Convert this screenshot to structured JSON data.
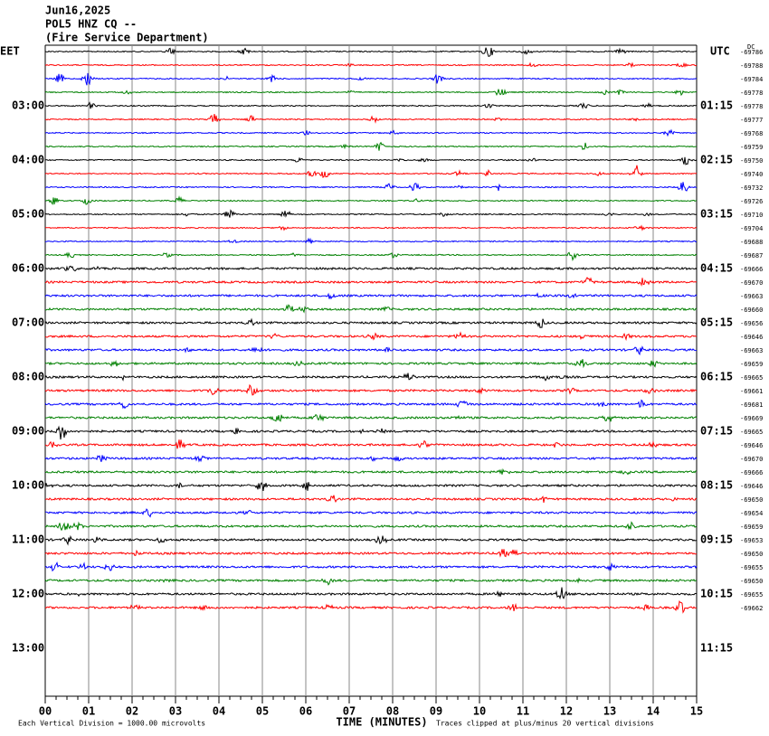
{
  "header": {
    "lines": [
      "Jun16,2025",
      "POL5 HNZ CQ --",
      "(Fire Service Department)"
    ]
  },
  "left_axis": {
    "title": "EET",
    "labels": [
      "03:00",
      "04:00",
      "05:00",
      "06:00",
      "07:00",
      "08:00",
      "09:00",
      "10:00",
      "11:00",
      "12:00",
      "13:00"
    ]
  },
  "right_axis": {
    "title": "UTC",
    "labels": [
      "01:15",
      "02:15",
      "03:15",
      "04:15",
      "05:15",
      "06:15",
      "07:15",
      "08:15",
      "09:15",
      "10:15",
      "11:15"
    ]
  },
  "dc_label": "DC",
  "trace_offsets": [
    "-69786",
    "-69788",
    "-69784",
    "-69778",
    "-69778",
    "-69777",
    "-69768",
    "-69759",
    "-69750",
    "-69740",
    "-69732",
    "-69726",
    "-69710",
    "-69704",
    "-69688",
    "-69687",
    "-69666",
    "-69670",
    "-69663",
    "-69660",
    "-69656",
    "-69646",
    "-69663",
    "-69659",
    "-69665",
    "-69661",
    "-69681",
    "-69669",
    "-69665",
    "-69646",
    "-69670",
    "-69666",
    "-69646",
    "-69650",
    "-69654",
    "-69659",
    "-69653",
    "-69650",
    "-69655",
    "-69650",
    "-69655",
    "-69662"
  ],
  "x_axis": {
    "labels": [
      "00",
      "01",
      "02",
      "03",
      "04",
      "05",
      "06",
      "07",
      "08",
      "09",
      "10",
      "11",
      "12",
      "13",
      "14",
      "15"
    ],
    "title": "TIME (MINUTES)"
  },
  "footer": {
    "scale_note": "Each Vertical Division = 1000.00 microvolts",
    "clip_note": "Traces clipped at plus/minus 20 vertical divisions"
  }
}
